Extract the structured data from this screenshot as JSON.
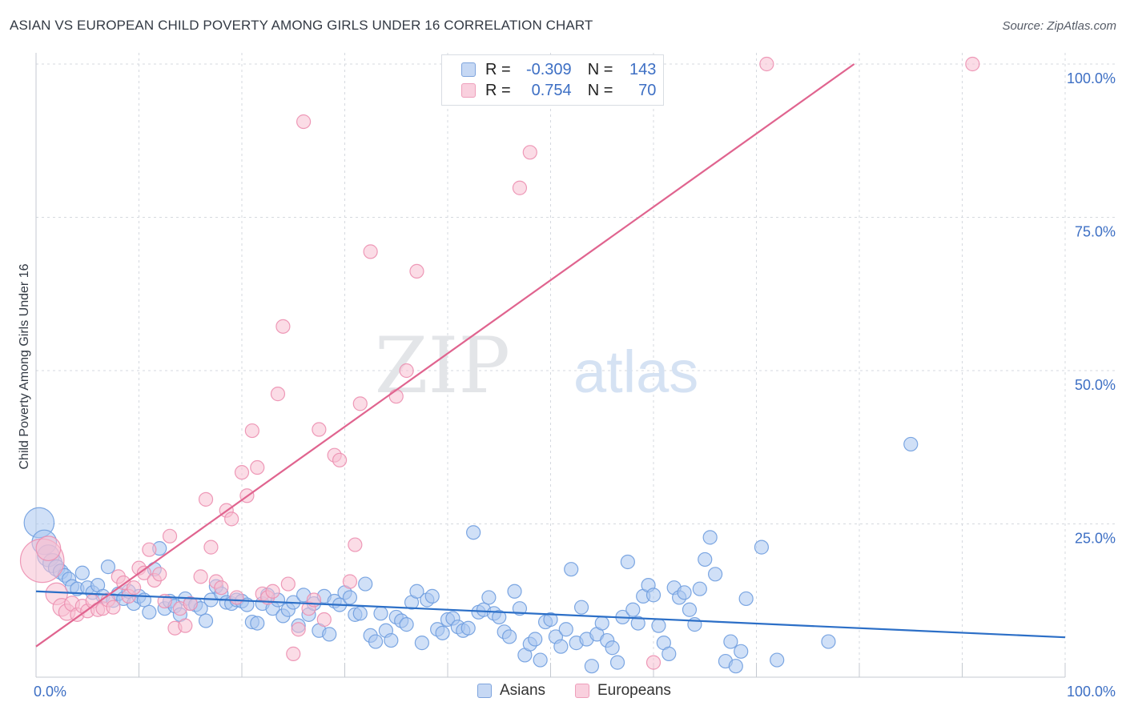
{
  "header": {
    "title": "ASIAN VS EUROPEAN CHILD POVERTY AMONG GIRLS UNDER 16 CORRELATION CHART",
    "source": "Source: ZipAtlas.com"
  },
  "watermark": {
    "zip": "ZIP",
    "atlas": "atlas"
  },
  "legend": {
    "rows": [
      {
        "r_label": "R =",
        "r_value": "-0.309",
        "n_label": "N =",
        "n_value": "143",
        "color": "#8fb4ea"
      },
      {
        "r_label": "R =",
        "r_value": "0.754",
        "n_label": "N =",
        "n_value": "70",
        "color": "#f4a7c1"
      }
    ]
  },
  "bottom_legend": [
    {
      "label": "Asians",
      "color": "#8fb4ea"
    },
    {
      "label": "Europeans",
      "color": "#f4a7c1"
    }
  ],
  "colors": {
    "asian_fill": "#aac6f0",
    "asian_stroke": "#6f9ddf",
    "asian_line": "#2c6fc7",
    "euro_fill": "#f7bfd2",
    "euro_stroke": "#ec8fb0",
    "euro_line": "#e0648f",
    "tick_label": "#3d6fc4",
    "grid": "#d5d9df"
  },
  "chart_data": {
    "type": "scatter",
    "title": "ASIAN VS EUROPEAN CHILD POVERTY AMONG GIRLS UNDER 16 CORRELATION CHART",
    "xlabel": "",
    "ylabel": "Child Poverty Among Girls Under 16",
    "xlim": [
      0,
      100
    ],
    "ylim": [
      0,
      100
    ],
    "x_tick_labels": [
      "0.0%",
      "100.0%"
    ],
    "y_tick_labels": [
      "25.0%",
      "50.0%",
      "75.0%",
      "100.0%"
    ],
    "y_ticks": [
      25,
      50,
      75,
      100
    ],
    "grid": true,
    "legend_position": "top-center",
    "series": [
      {
        "name": "Asians",
        "r": -0.309,
        "n": 143,
        "trend": {
          "x": [
            0,
            100
          ],
          "y": [
            14.0,
            6.5
          ]
        },
        "points": [
          [
            0.3,
            25.2,
            2.2
          ],
          [
            0.8,
            22.0,
            1.8
          ],
          [
            1.2,
            19.8,
            1.6
          ],
          [
            1.6,
            18.6,
            1.4
          ],
          [
            2.0,
            17.8,
            1.2
          ],
          [
            2.4,
            17.2,
            1.1
          ],
          [
            2.8,
            16.6,
            1.0
          ],
          [
            3.2,
            16.0,
            1.0
          ],
          [
            3.5,
            14.8,
            1.0
          ],
          [
            4.0,
            14.4,
            1.0
          ],
          [
            4.5,
            17.0,
            1.0
          ],
          [
            5.0,
            14.6,
            1.0
          ],
          [
            5.5,
            13.8,
            1.0
          ],
          [
            6.0,
            15.0,
            1.0
          ],
          [
            6.5,
            13.2,
            1.0
          ],
          [
            7.0,
            18.0,
            1.0
          ],
          [
            7.5,
            12.5,
            1.0
          ],
          [
            8.0,
            13.6,
            1.0
          ],
          [
            8.5,
            12.8,
            1.0
          ],
          [
            9.0,
            14.0,
            1.0
          ],
          [
            9.5,
            12.0,
            1.0
          ],
          [
            10.0,
            13.2,
            1.0
          ],
          [
            10.5,
            12.6,
            1.0
          ],
          [
            11.0,
            10.6,
            1.0
          ],
          [
            11.5,
            17.6,
            1.0
          ],
          [
            12.0,
            21.0,
            1.0
          ],
          [
            12.5,
            11.2,
            1.0
          ],
          [
            13.0,
            12.4,
            1.0
          ],
          [
            13.5,
            11.6,
            1.0
          ],
          [
            14.0,
            10.2,
            1.0
          ],
          [
            14.5,
            12.8,
            1.0
          ],
          [
            15.0,
            12.0,
            1.0
          ],
          [
            15.5,
            11.8,
            1.0
          ],
          [
            16.0,
            11.2,
            1.0
          ],
          [
            16.5,
            9.2,
            1.0
          ],
          [
            17.0,
            12.6,
            1.0
          ],
          [
            17.5,
            14.8,
            1.0
          ],
          [
            18.0,
            13.6,
            1.0
          ],
          [
            18.5,
            12.2,
            1.0
          ],
          [
            19.0,
            12.0,
            1.0
          ],
          [
            19.5,
            12.6,
            1.0
          ],
          [
            20.0,
            12.4,
            1.0
          ],
          [
            20.5,
            11.8,
            1.0
          ],
          [
            21.0,
            9.0,
            1.0
          ],
          [
            21.5,
            8.8,
            1.0
          ],
          [
            22.0,
            12.0,
            1.0
          ],
          [
            22.5,
            13.4,
            1.0
          ],
          [
            23.0,
            11.2,
            1.0
          ],
          [
            23.5,
            12.6,
            1.0
          ],
          [
            24.0,
            10.0,
            1.0
          ],
          [
            24.5,
            11.0,
            1.0
          ],
          [
            25.0,
            12.2,
            1.0
          ],
          [
            25.5,
            8.4,
            1.0
          ],
          [
            26.0,
            13.4,
            1.0
          ],
          [
            26.5,
            10.2,
            1.0
          ],
          [
            27.0,
            12.0,
            1.0
          ],
          [
            27.5,
            7.6,
            1.0
          ],
          [
            28.0,
            13.2,
            1.0
          ],
          [
            28.5,
            7.0,
            1.0
          ],
          [
            29.0,
            12.4,
            1.0
          ],
          [
            29.5,
            11.8,
            1.0
          ],
          [
            30.0,
            13.8,
            1.0
          ],
          [
            30.5,
            13.0,
            1.0
          ],
          [
            31.0,
            10.2,
            1.0
          ],
          [
            31.5,
            10.4,
            1.0
          ],
          [
            32.0,
            15.2,
            1.0
          ],
          [
            32.5,
            6.8,
            1.0
          ],
          [
            33.0,
            5.8,
            1.0
          ],
          [
            33.5,
            10.4,
            1.0
          ],
          [
            34.0,
            7.6,
            1.0
          ],
          [
            34.5,
            6.0,
            1.0
          ],
          [
            35.0,
            9.8,
            1.0
          ],
          [
            35.5,
            9.2,
            1.0
          ],
          [
            36.0,
            8.6,
            1.0
          ],
          [
            36.5,
            12.2,
            1.0
          ],
          [
            37.0,
            14.0,
            1.0
          ],
          [
            37.5,
            5.6,
            1.0
          ],
          [
            38.0,
            12.6,
            1.0
          ],
          [
            38.5,
            13.2,
            1.0
          ],
          [
            39.0,
            7.8,
            1.0
          ],
          [
            39.5,
            7.2,
            1.0
          ],
          [
            40.0,
            9.4,
            1.0
          ],
          [
            40.5,
            9.6,
            1.0
          ],
          [
            41.0,
            8.2,
            1.0
          ],
          [
            41.5,
            7.6,
            1.0
          ],
          [
            42.0,
            8.0,
            1.0
          ],
          [
            42.5,
            23.6,
            1.0
          ],
          [
            43.0,
            10.6,
            1.0
          ],
          [
            43.5,
            11.0,
            1.0
          ],
          [
            44.0,
            13.0,
            1.0
          ],
          [
            44.5,
            10.4,
            1.0
          ],
          [
            45.0,
            9.8,
            1.0
          ],
          [
            45.5,
            7.4,
            1.0
          ],
          [
            46.0,
            6.6,
            1.0
          ],
          [
            46.5,
            14.0,
            1.0
          ],
          [
            47.0,
            11.2,
            1.0
          ],
          [
            47.5,
            3.6,
            1.0
          ],
          [
            48.0,
            5.4,
            1.0
          ],
          [
            48.5,
            6.2,
            1.0
          ],
          [
            49.0,
            2.8,
            1.0
          ],
          [
            49.5,
            9.0,
            1.0
          ],
          [
            50.0,
            9.4,
            1.0
          ],
          [
            50.5,
            6.6,
            1.0
          ],
          [
            51.0,
            5.0,
            1.0
          ],
          [
            51.5,
            7.8,
            1.0
          ],
          [
            52.0,
            17.6,
            1.0
          ],
          [
            52.5,
            5.6,
            1.0
          ],
          [
            53.0,
            11.4,
            1.0
          ],
          [
            53.5,
            6.2,
            1.0
          ],
          [
            54.0,
            1.8,
            1.0
          ],
          [
            54.5,
            7.0,
            1.0
          ],
          [
            55.0,
            8.8,
            1.0
          ],
          [
            55.5,
            6.0,
            1.0
          ],
          [
            56.0,
            4.8,
            1.0
          ],
          [
            56.5,
            2.4,
            1.0
          ],
          [
            57.0,
            9.8,
            1.0
          ],
          [
            57.5,
            18.8,
            1.0
          ],
          [
            58.0,
            11.0,
            1.0
          ],
          [
            58.5,
            8.8,
            1.0
          ],
          [
            59.0,
            13.2,
            1.0
          ],
          [
            59.5,
            15.0,
            1.0
          ],
          [
            60.0,
            13.4,
            1.0
          ],
          [
            60.5,
            8.4,
            1.0
          ],
          [
            61.0,
            5.6,
            1.0
          ],
          [
            61.5,
            3.8,
            1.0
          ],
          [
            62.0,
            14.6,
            1.0
          ],
          [
            62.5,
            13.0,
            1.0
          ],
          [
            63.0,
            13.8,
            1.0
          ],
          [
            63.5,
            11.0,
            1.0
          ],
          [
            64.0,
            8.6,
            1.0
          ],
          [
            64.5,
            14.4,
            1.0
          ],
          [
            65.0,
            19.2,
            1.0
          ],
          [
            65.5,
            22.8,
            1.0
          ],
          [
            66.0,
            16.8,
            1.0
          ],
          [
            67.0,
            2.6,
            1.0
          ],
          [
            67.5,
            5.8,
            1.0
          ],
          [
            68.0,
            1.8,
            1.0
          ],
          [
            68.5,
            4.2,
            1.0
          ],
          [
            69.0,
            12.8,
            1.0
          ],
          [
            70.5,
            21.2,
            1.0
          ],
          [
            72.0,
            2.8,
            1.0
          ],
          [
            77.0,
            5.8,
            1.0
          ],
          [
            85.0,
            38.0,
            1.0
          ]
        ]
      },
      {
        "name": "Europeans",
        "r": 0.754,
        "n": 70,
        "trend": {
          "x": [
            0,
            79.5
          ],
          "y": [
            5.0,
            100.0
          ]
        },
        "points": [
          [
            0.6,
            19.0,
            3.2
          ],
          [
            1.2,
            21.0,
            1.8
          ],
          [
            2.0,
            13.6,
            1.6
          ],
          [
            2.5,
            11.4,
            1.3
          ],
          [
            3.0,
            10.6,
            1.2
          ],
          [
            3.5,
            12.0,
            1.1
          ],
          [
            4.0,
            10.2,
            1.0
          ],
          [
            4.5,
            11.6,
            1.0
          ],
          [
            5.0,
            10.8,
            1.0
          ],
          [
            5.5,
            12.4,
            1.0
          ],
          [
            6.0,
            11.0,
            1.0
          ],
          [
            6.5,
            11.2,
            1.0
          ],
          [
            7.0,
            12.6,
            1.0
          ],
          [
            7.5,
            11.4,
            1.0
          ],
          [
            8.0,
            16.4,
            1.0
          ],
          [
            8.5,
            15.4,
            1.0
          ],
          [
            9.0,
            13.2,
            1.0
          ],
          [
            9.5,
            14.6,
            1.0
          ],
          [
            10.0,
            17.8,
            1.0
          ],
          [
            10.5,
            17.0,
            1.0
          ],
          [
            11.0,
            20.8,
            1.0
          ],
          [
            11.5,
            15.8,
            1.0
          ],
          [
            12.0,
            16.8,
            1.0
          ],
          [
            12.5,
            12.4,
            1.0
          ],
          [
            13.0,
            23.0,
            1.0
          ],
          [
            13.5,
            8.0,
            1.0
          ],
          [
            14.0,
            11.2,
            1.0
          ],
          [
            14.5,
            8.4,
            1.0
          ],
          [
            15.0,
            12.0,
            1.0
          ],
          [
            16.0,
            16.4,
            1.0
          ],
          [
            16.5,
            29.0,
            1.0
          ],
          [
            17.0,
            21.2,
            1.0
          ],
          [
            17.5,
            15.6,
            1.0
          ],
          [
            18.0,
            14.6,
            1.0
          ],
          [
            18.5,
            27.2,
            1.0
          ],
          [
            19.0,
            25.8,
            1.0
          ],
          [
            19.5,
            13.0,
            1.0
          ],
          [
            20.0,
            33.4,
            1.0
          ],
          [
            20.5,
            29.6,
            1.0
          ],
          [
            21.0,
            40.2,
            1.0
          ],
          [
            21.5,
            34.2,
            1.0
          ],
          [
            22.0,
            13.6,
            1.0
          ],
          [
            22.5,
            13.0,
            1.0
          ],
          [
            23.0,
            14.0,
            1.0
          ],
          [
            23.5,
            46.2,
            1.0
          ],
          [
            24.0,
            57.2,
            1.0
          ],
          [
            24.5,
            15.2,
            1.0
          ],
          [
            25.0,
            3.8,
            1.0
          ],
          [
            25.5,
            7.8,
            1.0
          ],
          [
            26.0,
            90.6,
            1.0
          ],
          [
            26.5,
            11.2,
            1.0
          ],
          [
            27.0,
            12.6,
            1.0
          ],
          [
            27.5,
            40.4,
            1.0
          ],
          [
            28.0,
            9.4,
            1.0
          ],
          [
            29.0,
            36.2,
            1.0
          ],
          [
            29.5,
            35.4,
            1.0
          ],
          [
            30.5,
            15.6,
            1.0
          ],
          [
            31.0,
            21.6,
            1.0
          ],
          [
            31.5,
            44.6,
            1.0
          ],
          [
            32.5,
            69.4,
            1.0
          ],
          [
            35.0,
            45.8,
            1.0
          ],
          [
            36.0,
            50.0,
            1.0
          ],
          [
            37.0,
            66.2,
            1.0
          ],
          [
            41.0,
            100.0,
            1.0
          ],
          [
            47.0,
            79.8,
            1.0
          ],
          [
            48.0,
            85.6,
            1.0
          ],
          [
            54.5,
            100.0,
            1.0
          ],
          [
            60.0,
            2.4,
            1.0
          ],
          [
            71.0,
            100.0,
            1.0
          ],
          [
            91.0,
            100.0,
            1.0
          ]
        ]
      }
    ]
  }
}
